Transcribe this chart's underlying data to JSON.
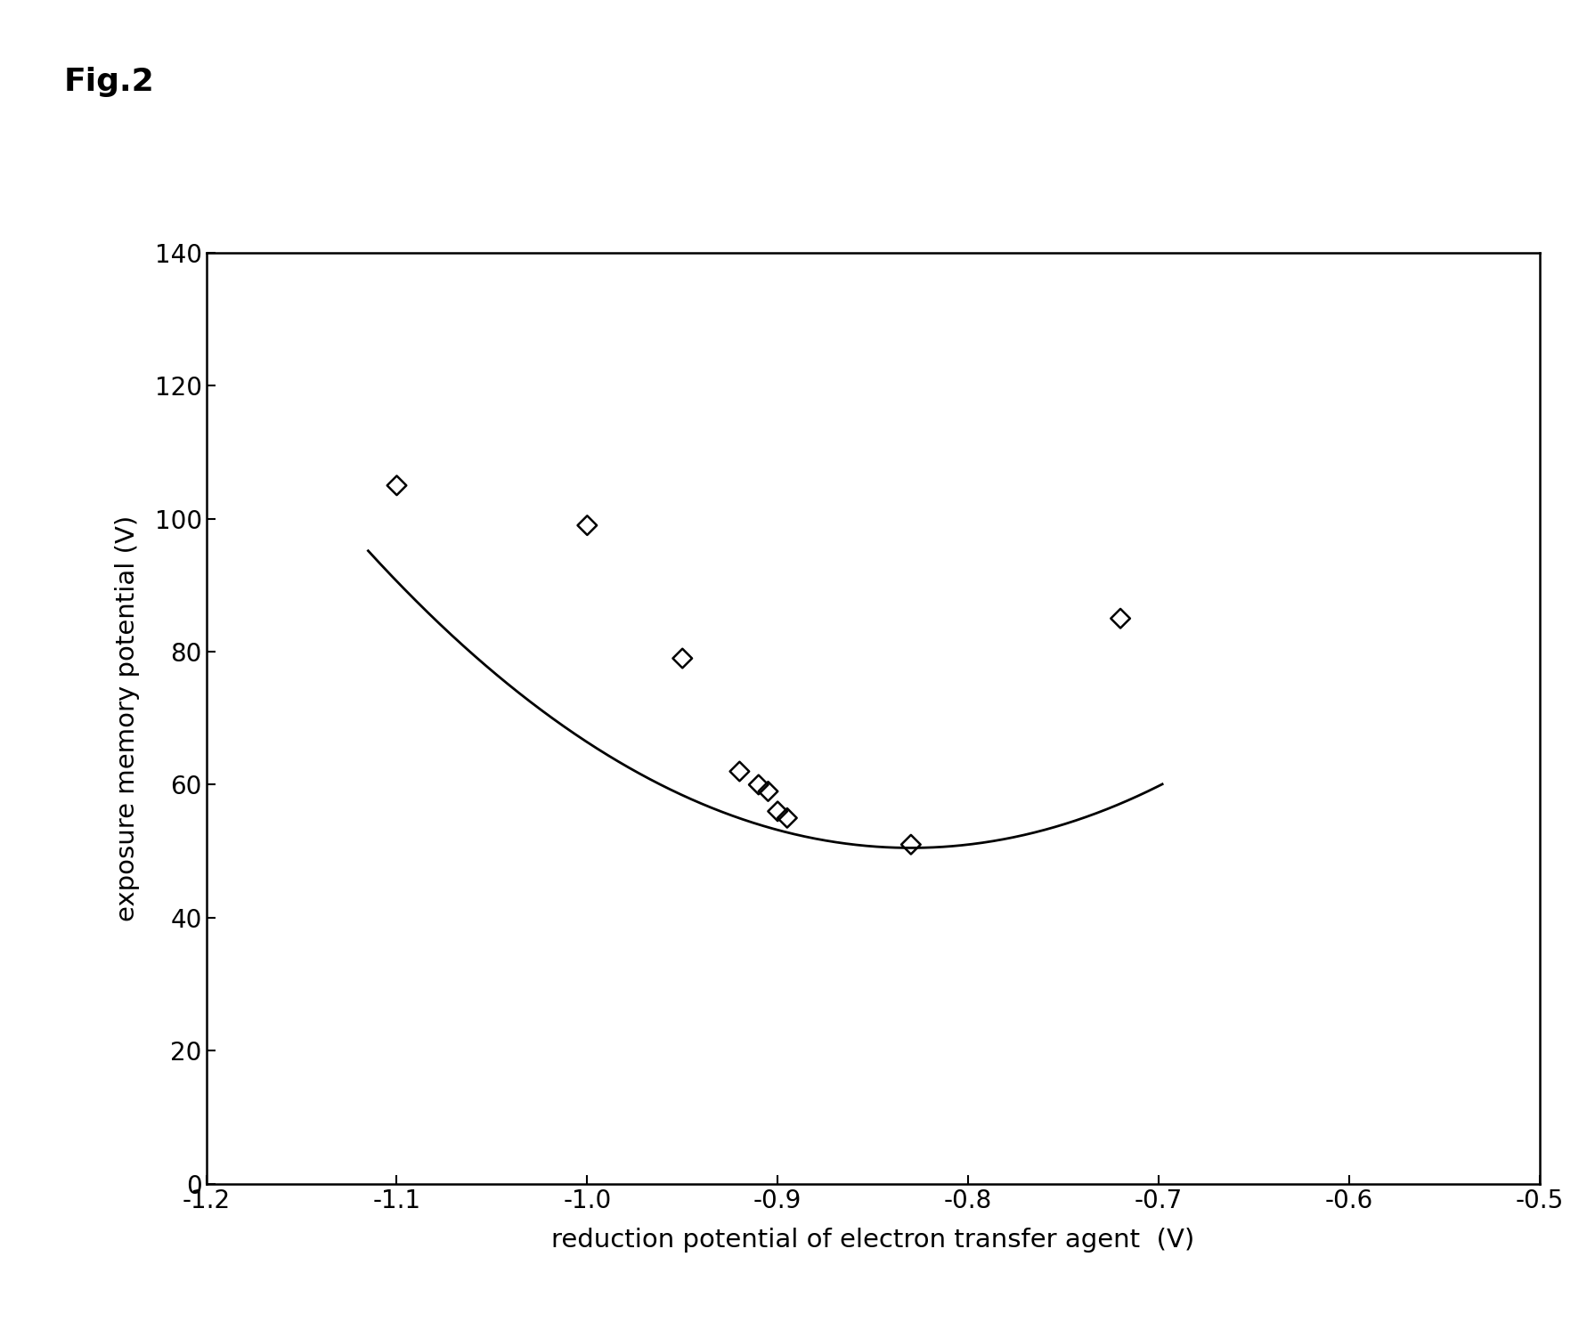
{
  "title": "Fig.2",
  "xlabel": "reduction potential of electron transfer agent  (V)",
  "ylabel": "exposure memory potential (V)",
  "xlim": [
    -1.2,
    -0.5
  ],
  "ylim": [
    0,
    140
  ],
  "xticks": [
    -1.2,
    -1.1,
    -1.0,
    -0.9,
    -0.8,
    -0.7,
    -0.6,
    -0.5
  ],
  "yticks": [
    0,
    20,
    40,
    60,
    80,
    100,
    120,
    140
  ],
  "scatter_x": [
    -1.1,
    -1.0,
    -0.95,
    -0.92,
    -0.91,
    -0.905,
    -0.9,
    -0.895,
    -0.83,
    -0.72
  ],
  "scatter_y": [
    105,
    99,
    79,
    62,
    60,
    59,
    56,
    55,
    51,
    85
  ],
  "curve_vertex_x": -0.83,
  "curve_vertex_y": 50.5,
  "curve_a": 550,
  "curve_x_start": -1.115,
  "curve_x_end": -0.698,
  "background_color": "#ffffff",
  "scatter_color": "#000000",
  "curve_color": "#000000",
  "marker_size": 11,
  "curve_linewidth": 2.0,
  "axis_linewidth": 1.8,
  "tick_fontsize": 20,
  "label_fontsize": 21,
  "title_fontsize": 26
}
